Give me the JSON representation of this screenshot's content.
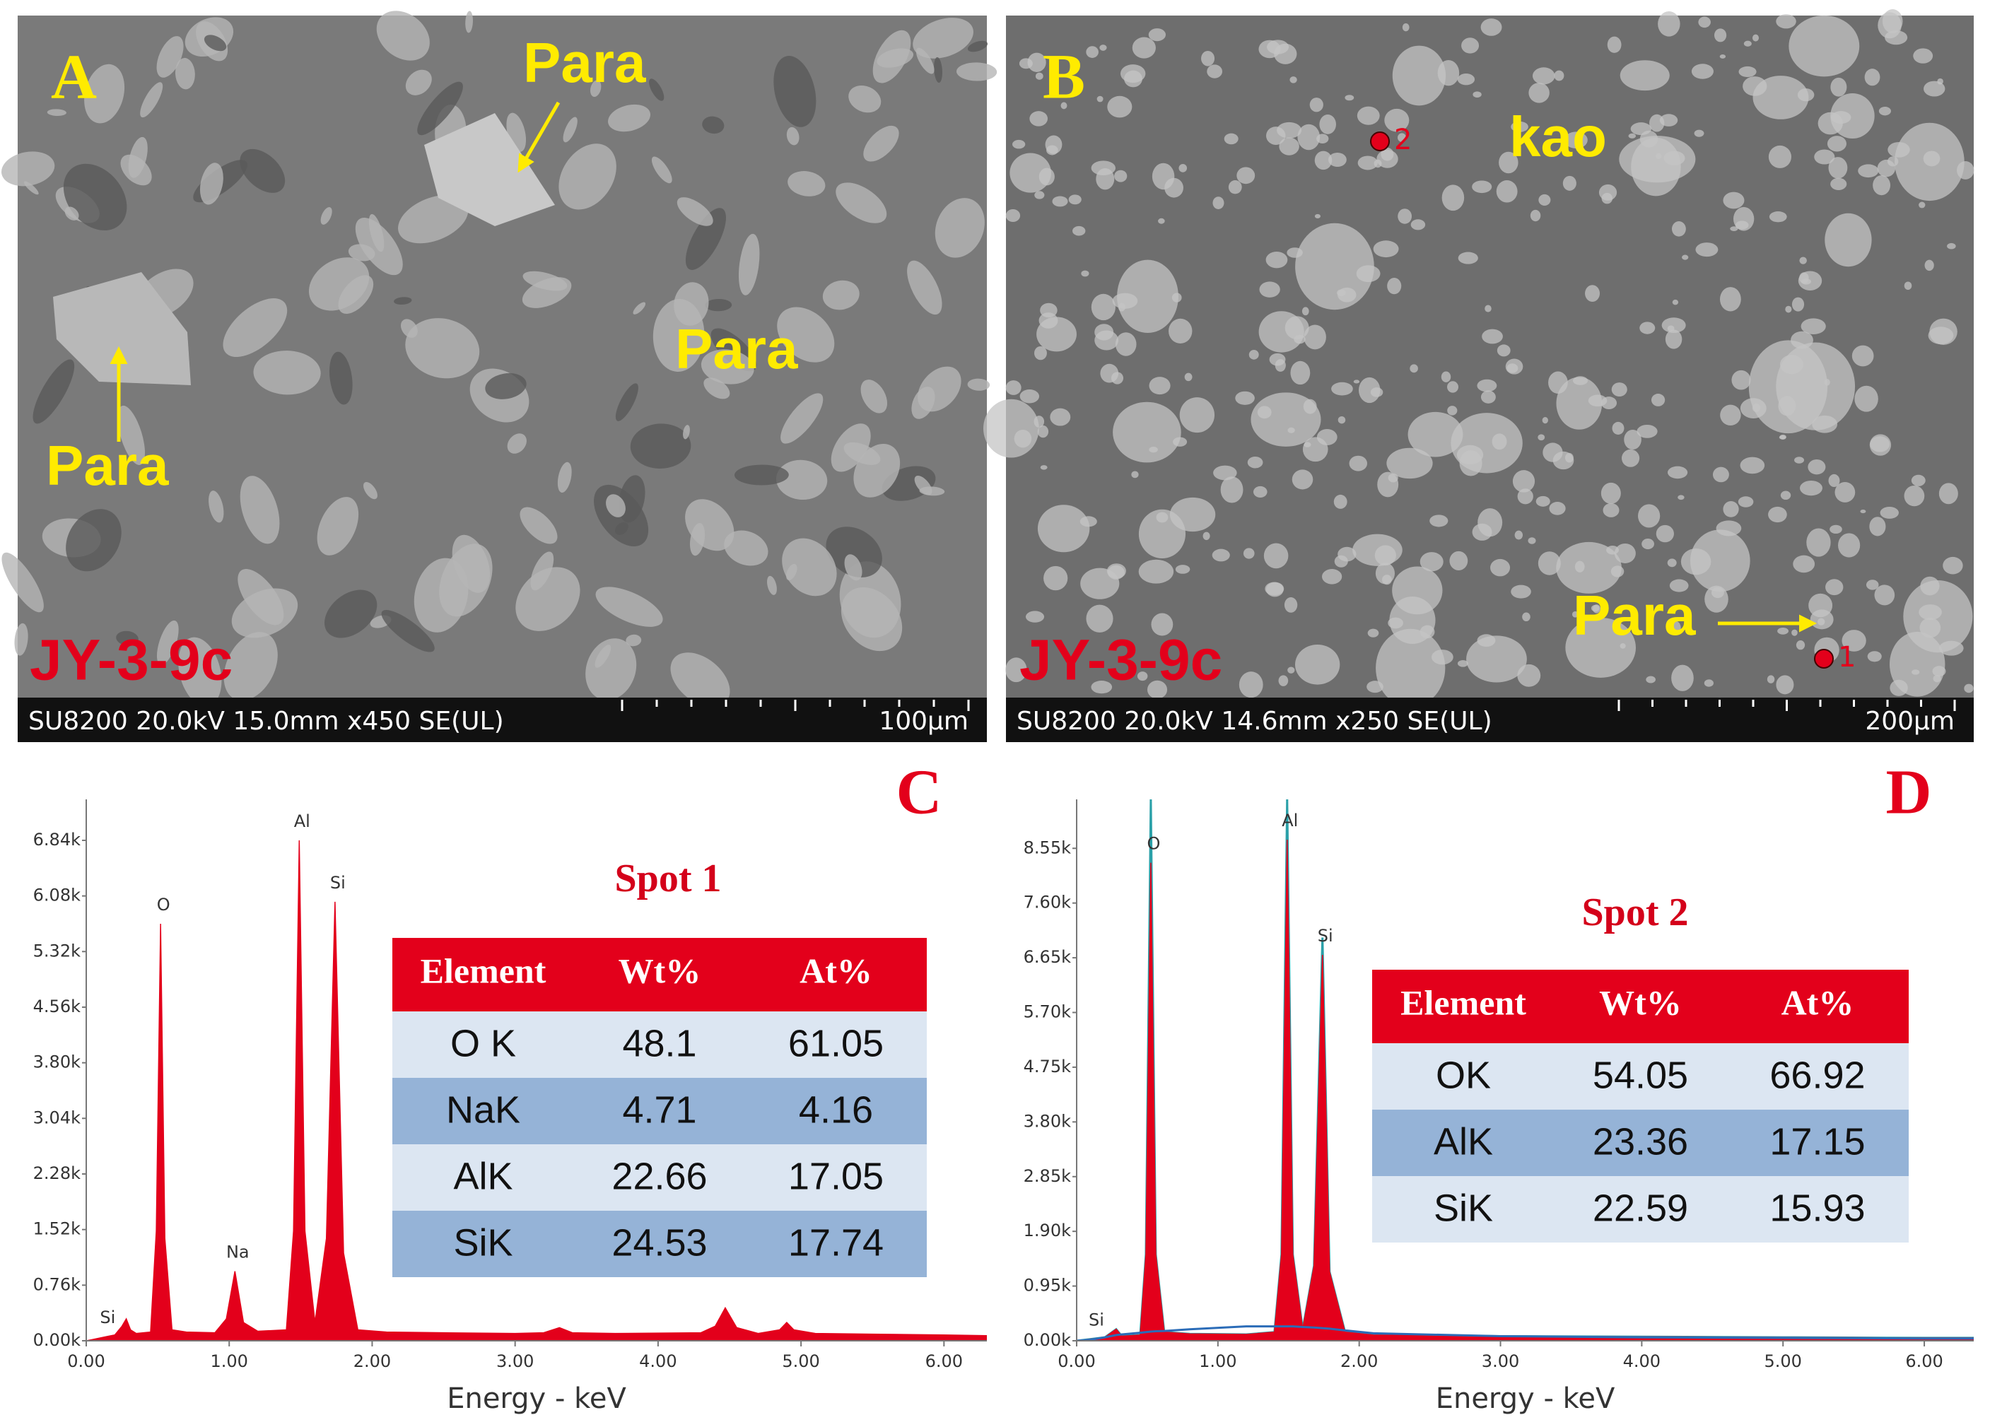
{
  "images": [
    {
      "letter": "A",
      "labels": [
        "Para",
        "Para",
        "Para"
      ],
      "sample": "JY-3-9c",
      "info": "SU8200 20.0kV 15.0mm x450 SE(UL)",
      "scale_bar": "100µm"
    },
    {
      "letter": "B",
      "labels": [
        "kao",
        "Para"
      ],
      "spots": [
        "2",
        "1"
      ],
      "sample": "JY-3-9c",
      "info": "SU8200 20.0kV 14.6mm x250 SE(UL)",
      "scale_bar": "200µm"
    }
  ],
  "chart_data": [
    {
      "type": "spectrum",
      "letter": "C",
      "xlabel": "Energy - keV",
      "x": [
        0,
        0.05,
        0.1,
        0.15,
        0.2,
        0.25,
        0.28,
        0.31,
        0.35,
        0.45,
        0.49,
        0.52,
        0.55,
        0.6,
        0.7,
        0.9,
        0.98,
        1.04,
        1.1,
        1.2,
        1.4,
        1.45,
        1.49,
        1.53,
        1.6,
        1.68,
        1.74,
        1.8,
        1.9,
        2.1,
        2.5,
        3.0,
        3.2,
        3.31,
        3.4,
        3.7,
        4.3,
        4.4,
        4.47,
        4.55,
        4.7,
        4.85,
        4.9,
        4.95,
        5.1,
        5.5,
        6.0,
        6.3
      ],
      "series": [
        {
          "style": "area",
          "color": "#e3001b",
          "values": [
            0,
            20,
            40,
            60,
            80,
            200,
            300,
            150,
            100,
            120,
            1500,
            5700,
            1400,
            150,
            120,
            110,
            300,
            950,
            250,
            130,
            150,
            1500,
            6840,
            1500,
            250,
            1400,
            6000,
            1200,
            150,
            120,
            110,
            100,
            110,
            180,
            110,
            100,
            110,
            200,
            450,
            180,
            100,
            150,
            250,
            150,
            100,
            90,
            80,
            70
          ]
        }
      ],
      "xlim": [
        0,
        6.3
      ],
      "xticks": [
        {
          "value": 0,
          "label": "0.00"
        },
        {
          "value": 1,
          "label": "1.00"
        },
        {
          "value": 2,
          "label": "2.00"
        },
        {
          "value": 3,
          "label": "3.00"
        },
        {
          "value": 4,
          "label": "4.00"
        },
        {
          "value": 5,
          "label": "5.00"
        },
        {
          "value": 6,
          "label": "6.00"
        }
      ],
      "ylim": [
        0,
        7400
      ],
      "yticks": [
        {
          "value": 0,
          "label": "0.00k"
        },
        {
          "value": 760,
          "label": "0.76k"
        },
        {
          "value": 1520,
          "label": "1.52k"
        },
        {
          "value": 2280,
          "label": "2.28k"
        },
        {
          "value": 3040,
          "label": "3.04k"
        },
        {
          "value": 3800,
          "label": "3.80k"
        },
        {
          "value": 4560,
          "label": "4.56k"
        },
        {
          "value": 5320,
          "label": "5.32k"
        },
        {
          "value": 6080,
          "label": "6.08k"
        },
        {
          "value": 6840,
          "label": "6.84k"
        }
      ],
      "annotations": [
        {
          "text": "Si",
          "x": 0.13
        },
        {
          "text": "O",
          "x": 0.52
        },
        {
          "text": "Na",
          "x": 1.04
        },
        {
          "text": "Al",
          "x": 1.49
        },
        {
          "text": "Si",
          "x": 1.74
        }
      ],
      "table": {
        "title": "Spot 1",
        "columns": [
          "Element",
          "Wt%",
          "At%"
        ],
        "rows": [
          [
            "O K",
            48.1,
            61.05
          ],
          [
            "NaK",
            4.71,
            4.16
          ],
          [
            "AlK",
            22.66,
            17.05
          ],
          [
            "SiK",
            24.53,
            17.74
          ]
        ]
      }
    },
    {
      "type": "spectrum",
      "letter": "D",
      "xlabel": "Energy - keV",
      "x": [
        0,
        0.1,
        0.2,
        0.28,
        0.32,
        0.45,
        0.49,
        0.525,
        0.56,
        0.62,
        0.8,
        1.2,
        1.4,
        1.45,
        1.49,
        1.53,
        1.6,
        1.68,
        1.74,
        1.79,
        1.9,
        2.1,
        3,
        4,
        5,
        6,
        6.35
      ],
      "series": [
        {
          "style": "line",
          "color": "#2aa0a8",
          "values": [
            0,
            30,
            60,
            200,
            80,
            100,
            1500,
            9400,
            1500,
            150,
            120,
            110,
            150,
            1500,
            9400,
            1500,
            200,
            1300,
            7000,
            1200,
            150,
            100,
            80,
            70,
            60,
            50,
            50
          ]
        },
        {
          "style": "area",
          "color": "#e3001b",
          "values": [
            0,
            30,
            60,
            200,
            80,
            100,
            1500,
            8300,
            1500,
            150,
            120,
            110,
            150,
            1500,
            8700,
            1500,
            200,
            1300,
            6700,
            1200,
            150,
            100,
            80,
            70,
            60,
            50,
            50
          ]
        },
        {
          "style": "line",
          "color": "#2b6cb8",
          "values": [
            0,
            20,
            60,
            100,
            110,
            140,
            150,
            160,
            165,
            170,
            200,
            250,
            250,
            250,
            250,
            250,
            240,
            230,
            220,
            210,
            180,
            130,
            80,
            60,
            50,
            40,
            40
          ]
        }
      ],
      "xlim": [
        0,
        6.35
      ],
      "xticks": [
        {
          "value": 0,
          "label": "0.00"
        },
        {
          "value": 1,
          "label": "1.00"
        },
        {
          "value": 2,
          "label": "2.00"
        },
        {
          "value": 3,
          "label": "3.00"
        },
        {
          "value": 4,
          "label": "4.00"
        },
        {
          "value": 5,
          "label": "5.00"
        },
        {
          "value": 6,
          "label": "6.00"
        }
      ],
      "ylim": [
        0,
        9400
      ],
      "yticks": [
        {
          "value": 0,
          "label": "0.00k"
        },
        {
          "value": 950,
          "label": "0.95k"
        },
        {
          "value": 1900,
          "label": "1.90k"
        },
        {
          "value": 2850,
          "label": "2.85k"
        },
        {
          "value": 3800,
          "label": "3.80k"
        },
        {
          "value": 4750,
          "label": "4.75k"
        },
        {
          "value": 5700,
          "label": "5.70k"
        },
        {
          "value": 6650,
          "label": "6.65k"
        },
        {
          "value": 7600,
          "label": "7.60k"
        },
        {
          "value": 8550,
          "label": "8.55k"
        }
      ],
      "annotations": [
        {
          "text": "Si",
          "x": 0.12
        },
        {
          "text": "O",
          "x": 0.525
        },
        {
          "text": "Al",
          "x": 1.49
        },
        {
          "text": "Si",
          "x": 1.74
        }
      ],
      "table": {
        "title": "Spot 2",
        "columns": [
          "Element",
          "Wt%",
          "At%"
        ],
        "rows": [
          [
            "OK",
            54.05,
            66.92
          ],
          [
            "AlK",
            23.36,
            17.15
          ],
          [
            "SiK",
            22.59,
            15.93
          ]
        ]
      }
    }
  ]
}
